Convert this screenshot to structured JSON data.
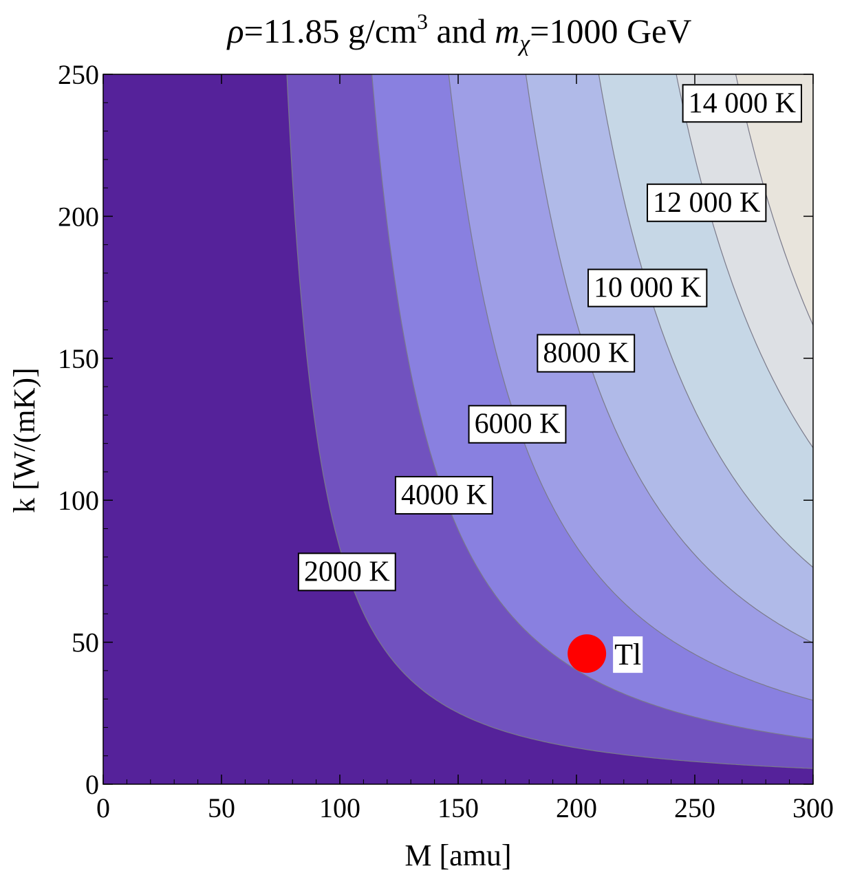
{
  "chart_data": {
    "type": "contour",
    "title": {
      "rho_symbol": "ρ",
      "rho_value": "=11.85 g/cm",
      "rho_exp": "3",
      "middle": " and ",
      "m_symbol": "m",
      "m_sub": "χ",
      "m_value": "=1000 GeV"
    },
    "xlabel": "M [amu]",
    "ylabel": "k [W/(mK)]",
    "xlim": [
      0,
      300
    ],
    "ylim": [
      0,
      250
    ],
    "xticks": [
      0,
      50,
      100,
      150,
      200,
      250,
      300
    ],
    "yticks": [
      0,
      50,
      100,
      150,
      200,
      250
    ],
    "xtick_labels": [
      "0",
      "50",
      "100",
      "150",
      "200",
      "250",
      "300"
    ],
    "ytick_labels": [
      "0",
      "50",
      "100",
      "150",
      "200",
      "250"
    ],
    "contour_levels": [
      {
        "value": 2000,
        "label": "2000 K",
        "label_at": [
          103,
          75
        ]
      },
      {
        "value": 4000,
        "label": "4000 K",
        "label_at": [
          144,
          102
        ]
      },
      {
        "value": 6000,
        "label": "6000 K",
        "label_at": [
          175,
          127
        ]
      },
      {
        "value": 8000,
        "label": "8000 K",
        "label_at": [
          204,
          152
        ]
      },
      {
        "value": 10000,
        "label": "10 000 K",
        "label_at": [
          230,
          175
        ]
      },
      {
        "value": 12000,
        "label": "12 000 K",
        "label_at": [
          255,
          205
        ]
      },
      {
        "value": 14000,
        "label": "14 000 K",
        "label_at": [
          270,
          240
        ]
      }
    ],
    "fill_colors": [
      "#55229a",
      "#7152bf",
      "#8980e0",
      "#9e9ee6",
      "#b0bae8",
      "#c6d7e6",
      "#dde0e4",
      "#e8e4dc"
    ],
    "line_color": "#7a7a8a",
    "points": [
      {
        "label": "Tl",
        "x": 204.4,
        "y": 46,
        "color": "#ff0000"
      }
    ]
  }
}
